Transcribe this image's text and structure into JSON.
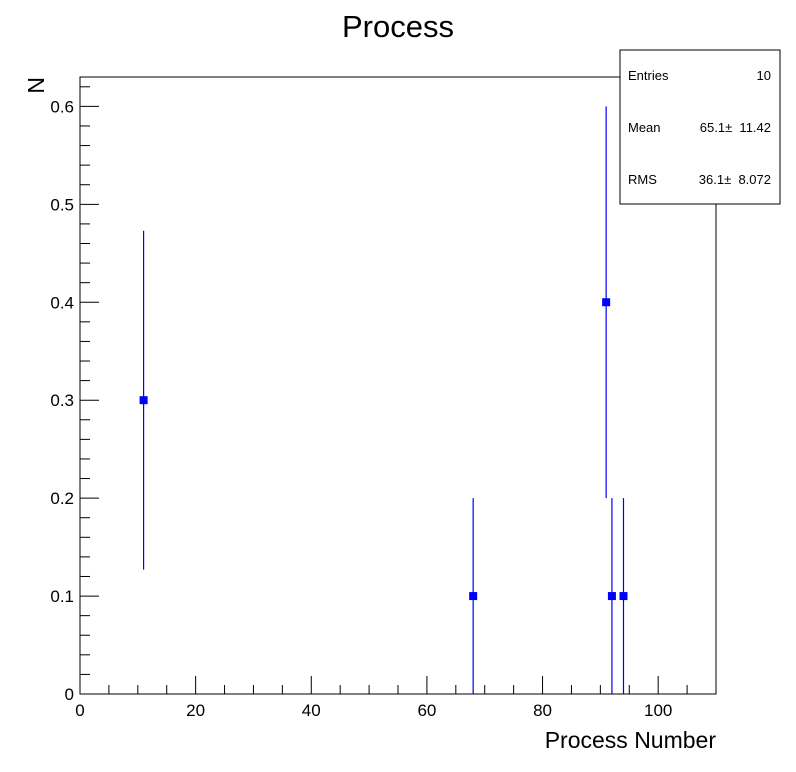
{
  "chart_data": {
    "type": "scatter",
    "title": "Process",
    "xlabel": "Process Number",
    "ylabel": "N",
    "xlim": [
      0,
      110
    ],
    "ylim": [
      0,
      0.63
    ],
    "x_ticks": [
      0,
      20,
      40,
      60,
      80,
      100
    ],
    "y_ticks": [
      0,
      0.1,
      0.2,
      0.3,
      0.4,
      0.5,
      0.6
    ],
    "x_tick_labels": [
      "0",
      "20",
      "40",
      "60",
      "80",
      "100"
    ],
    "y_tick_labels": [
      "0",
      "0.1",
      "0.2",
      "0.3",
      "0.4",
      "0.5",
      "0.6"
    ],
    "grid": false,
    "marker_color": "#0000ff",
    "series": [
      {
        "points": [
          {
            "x": 11,
            "y": 0.3,
            "err_low": 0.127,
            "err_high": 0.473
          },
          {
            "x": 68,
            "y": 0.1,
            "err_low": 0.0,
            "err_high": 0.2
          },
          {
            "x": 91,
            "y": 0.4,
            "err_low": 0.2,
            "err_high": 0.6
          },
          {
            "x": 92,
            "y": 0.1,
            "err_low": 0.0,
            "err_high": 0.2
          },
          {
            "x": 94,
            "y": 0.1,
            "err_low": 0.0,
            "err_high": 0.2
          }
        ]
      }
    ],
    "stats_box": {
      "placement": "top-right",
      "rows": [
        {
          "label": "Entries",
          "value": "10"
        },
        {
          "label": "Mean",
          "value": "65.1±  11.42"
        },
        {
          "label": "RMS",
          "value": "36.1±  8.072"
        }
      ]
    }
  }
}
